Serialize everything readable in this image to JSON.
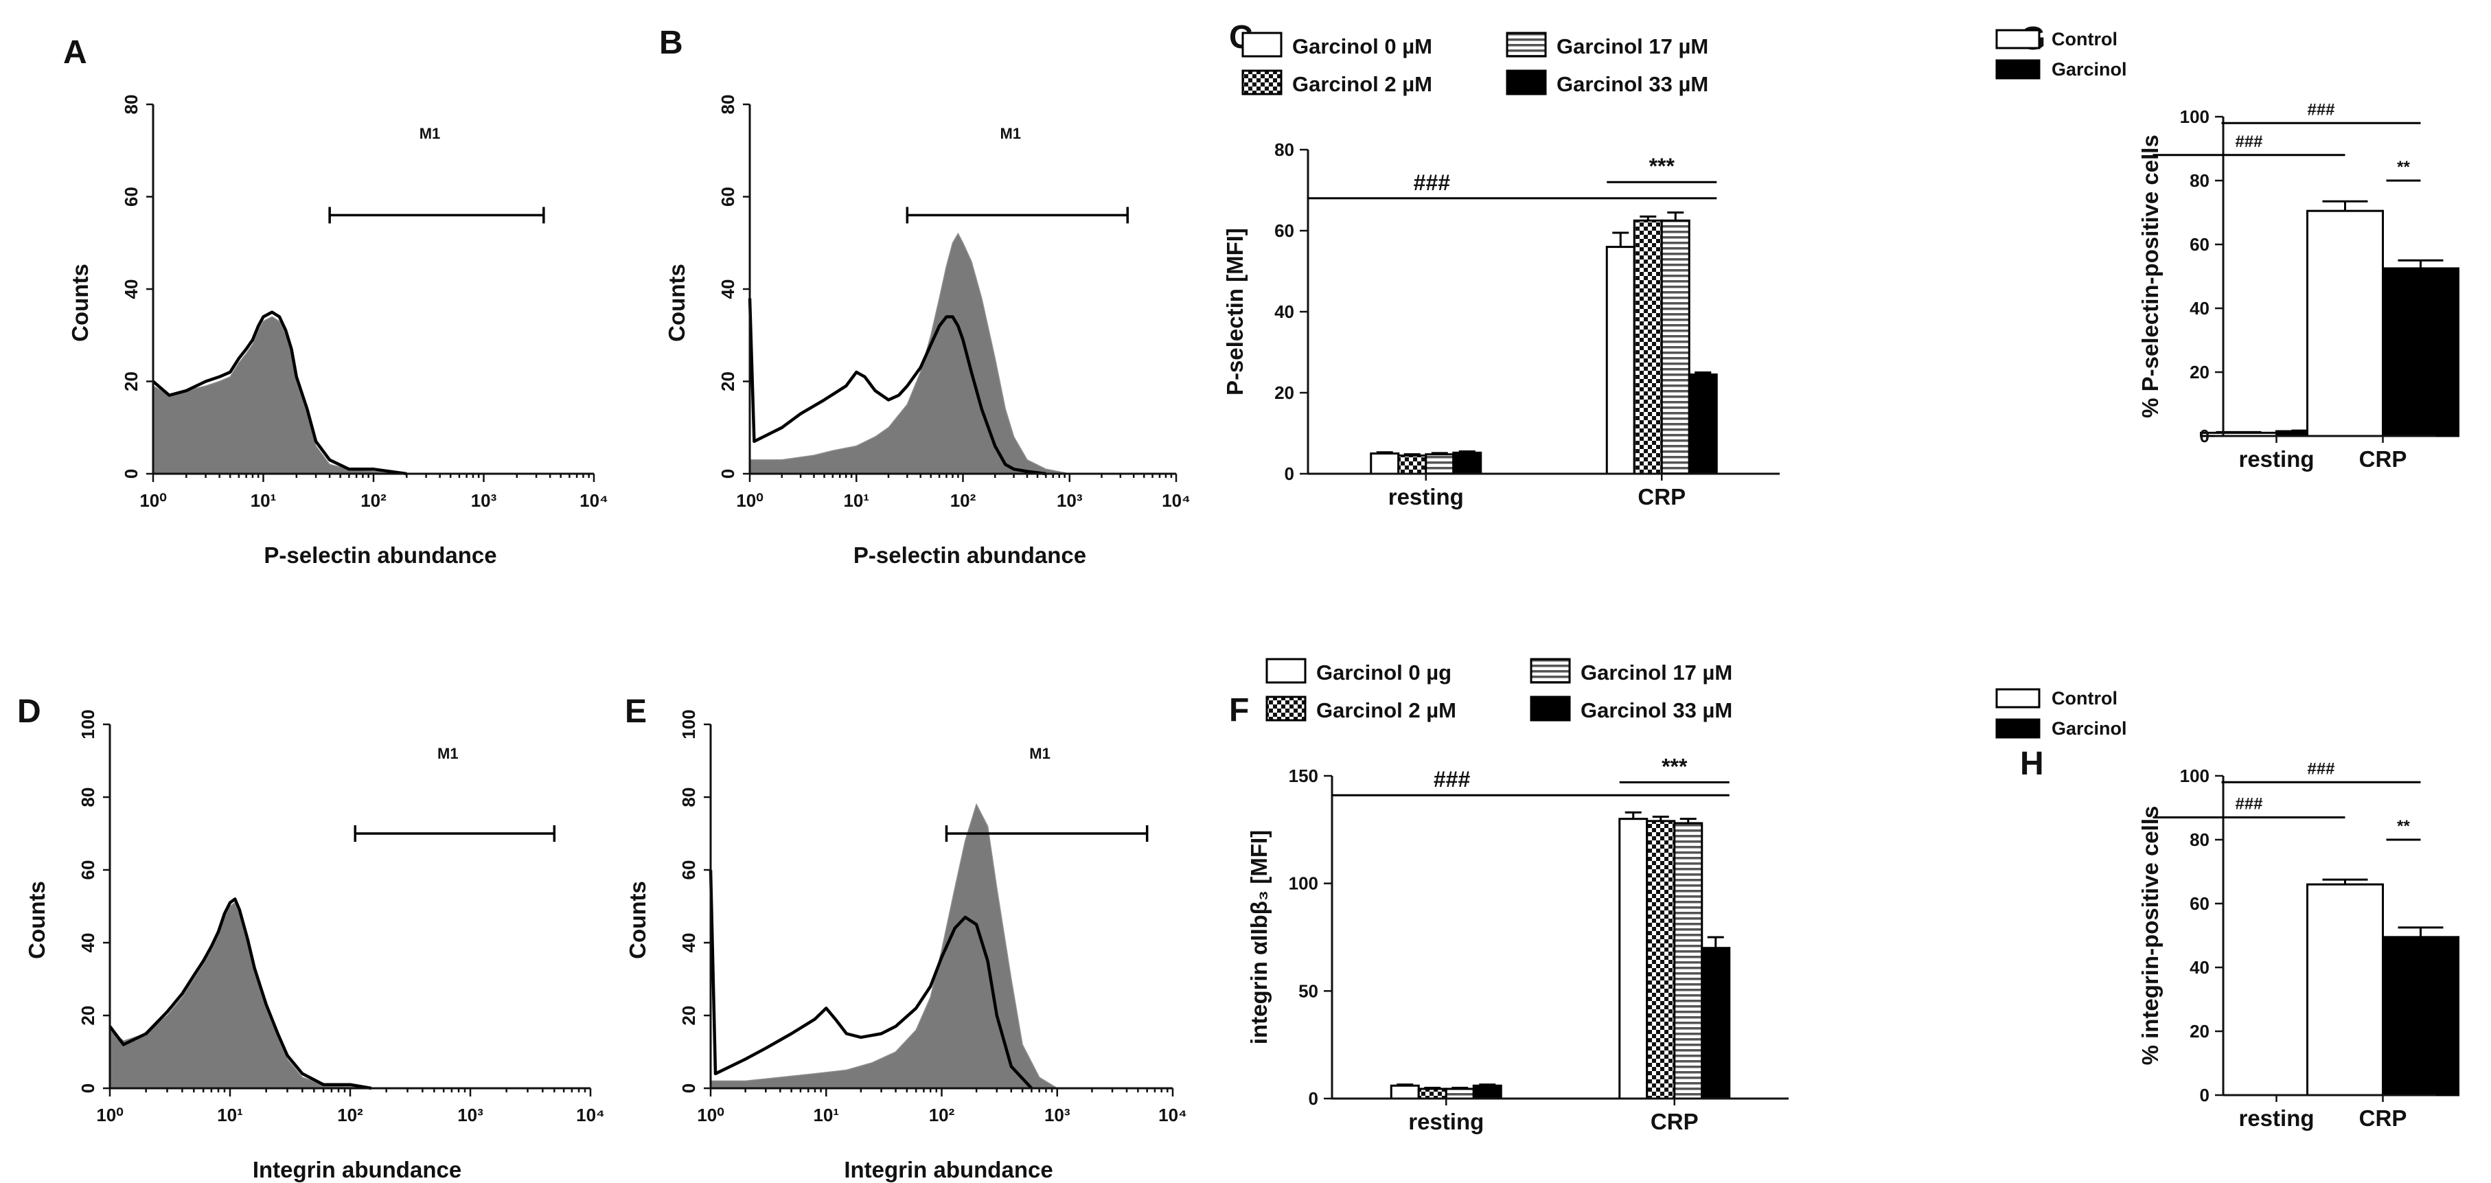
{
  "chart_data": [
    {
      "panel": "A",
      "type": "histogram",
      "ylabel": "Counts",
      "xlabel": "P-selectin abundance",
      "xscale": "log",
      "xlim": [
        1,
        10000
      ],
      "ylim": [
        0,
        80
      ],
      "y_ticks": [
        "0",
        "20",
        "40",
        "60",
        "80"
      ],
      "x_ticks": [
        "10⁰",
        "10¹",
        "10²",
        "10³",
        "10⁴"
      ],
      "gate": {
        "label": "M1",
        "from": 40,
        "to": 3500
      },
      "filled_series": {
        "name": "filled",
        "x": [
          1,
          1.4,
          2,
          3,
          4,
          5,
          6,
          7,
          8,
          9,
          10,
          12,
          14,
          16,
          18,
          20,
          25,
          30,
          40,
          60,
          100,
          200
        ],
        "y": [
          19,
          17,
          18,
          19,
          20,
          21,
          24,
          26,
          28,
          31,
          33,
          34,
          33,
          30,
          26,
          20,
          13,
          6,
          2,
          1,
          0.5,
          0
        ]
      },
      "outline_series": {
        "name": "outline",
        "x": [
          1,
          1.4,
          2,
          3,
          4,
          5,
          6,
          7,
          8,
          9,
          10,
          12,
          14,
          16,
          18,
          20,
          25,
          30,
          40,
          60,
          100,
          200
        ],
        "y": [
          20,
          17,
          18,
          20,
          21,
          22,
          25,
          27,
          29,
          32,
          34,
          35,
          34,
          31,
          27,
          21,
          14,
          7,
          3,
          1,
          1,
          0
        ]
      }
    },
    {
      "panel": "B",
      "type": "histogram",
      "ylabel": "Counts",
      "xlabel": "P-selectin abundance",
      "xscale": "log",
      "xlim": [
        1,
        10000
      ],
      "ylim": [
        0,
        80
      ],
      "y_ticks": [
        "0",
        "20",
        "40",
        "60",
        "80"
      ],
      "x_ticks": [
        "10⁰",
        "10¹",
        "10²",
        "10³",
        "10⁴"
      ],
      "gate": {
        "label": "M1",
        "from": 30,
        "to": 3500
      },
      "filled_series": {
        "name": "filled",
        "x": [
          1,
          2,
          4,
          6,
          10,
          15,
          20,
          30,
          40,
          50,
          60,
          70,
          80,
          90,
          100,
          120,
          150,
          200,
          250,
          300,
          400,
          600,
          1000
        ],
        "y": [
          3,
          3,
          4,
          5,
          6,
          8,
          10,
          15,
          22,
          30,
          38,
          45,
          50,
          52,
          50,
          46,
          38,
          25,
          14,
          8,
          3,
          1,
          0
        ]
      },
      "outline_series": {
        "name": "outline",
        "x": [
          1,
          1.1,
          2,
          3,
          5,
          8,
          10,
          12,
          15,
          20,
          25,
          30,
          40,
          50,
          60,
          70,
          80,
          90,
          100,
          120,
          150,
          200,
          250,
          300,
          400,
          600
        ],
        "y": [
          38,
          7,
          10,
          13,
          16,
          19,
          22,
          21,
          18,
          16,
          17,
          19,
          23,
          28,
          32,
          34,
          34,
          32,
          29,
          22,
          14,
          6,
          2,
          1,
          0.5,
          0
        ]
      }
    },
    {
      "panel": "C",
      "type": "bar",
      "ylabel": "P-selectin [MFI]",
      "categories": [
        "resting",
        "CRP"
      ],
      "ylim": [
        0,
        80
      ],
      "y_ticks": [
        "0",
        "20",
        "40",
        "60",
        "80"
      ],
      "legend": [
        "Garcinol 0 µM",
        "Garcinol 2 µM",
        "Garcinol 17 µM",
        "Garcinol 33 µM"
      ],
      "series": [
        {
          "name": "Garcinol 0 µM",
          "pattern": "white",
          "values": [
            5,
            56
          ],
          "errors": [
            0.3,
            3.5
          ]
        },
        {
          "name": "Garcinol 2 µM",
          "pattern": "checker",
          "values": [
            4.5,
            62.5
          ],
          "errors": [
            0.3,
            1
          ]
        },
        {
          "name": "Garcinol 17 µM",
          "pattern": "hstripe",
          "values": [
            4.8,
            62.5
          ],
          "errors": [
            0.3,
            2
          ]
        },
        {
          "name": "Garcinol 33 µM",
          "pattern": "black",
          "values": [
            5.2,
            24.5
          ],
          "errors": [
            0.3,
            0.5
          ]
        }
      ],
      "significance": [
        {
          "label": "###",
          "level": 68
        },
        {
          "label": "***",
          "level": 72
        }
      ]
    },
    {
      "panel": "G",
      "type": "bar",
      "ylabel": "% P-selectin-positive cells",
      "categories": [
        "resting",
        "CRP"
      ],
      "ylim": [
        0,
        100
      ],
      "y_ticks": [
        "0",
        "20",
        "40",
        "60",
        "80",
        "100"
      ],
      "legend": [
        "Control",
        "Garcinol"
      ],
      "series": [
        {
          "name": "Control",
          "pattern": "white",
          "values": [
            1,
            70.5
          ],
          "errors": [
            0.2,
            3
          ]
        },
        {
          "name": "Garcinol",
          "pattern": "black",
          "values": [
            1.5,
            52.5
          ],
          "errors": [
            0.2,
            2.5
          ]
        }
      ],
      "significance": [
        {
          "label": "###",
          "level": 98
        },
        {
          "label": "###",
          "level": 88
        },
        {
          "label": "**",
          "level": 80
        }
      ]
    },
    {
      "panel": "D",
      "type": "histogram",
      "ylabel": "Counts",
      "xlabel": "Integrin abundance",
      "xscale": "log",
      "xlim": [
        1,
        10000
      ],
      "ylim": [
        0,
        100
      ],
      "y_ticks": [
        "0",
        "20",
        "40",
        "60",
        "80",
        "100"
      ],
      "x_ticks": [
        "10⁰",
        "10¹",
        "10²",
        "10³",
        "10⁴"
      ],
      "gate": {
        "label": "M1",
        "from": 110,
        "to": 5000
      },
      "filled_series": {
        "name": "filled",
        "x": [
          1,
          1.3,
          2,
          3,
          4,
          5,
          6,
          7,
          8,
          9,
          10,
          11,
          12,
          14,
          16,
          20,
          25,
          30,
          40,
          60,
          100,
          150
        ],
        "y": [
          16,
          13,
          15,
          20,
          25,
          30,
          34,
          38,
          42,
          47,
          50,
          51,
          48,
          40,
          32,
          22,
          14,
          8,
          3,
          1,
          0.5,
          0
        ]
      },
      "outline_series": {
        "name": "outline",
        "x": [
          1,
          1.3,
          2,
          3,
          4,
          5,
          6,
          7,
          8,
          9,
          10,
          11,
          12,
          14,
          16,
          20,
          25,
          30,
          40,
          60,
          100,
          150
        ],
        "y": [
          17,
          12,
          15,
          21,
          26,
          31,
          35,
          39,
          43,
          48,
          51,
          52,
          49,
          41,
          33,
          23,
          15,
          9,
          4,
          1,
          1,
          0
        ]
      }
    },
    {
      "panel": "E",
      "type": "histogram",
      "ylabel": "Counts",
      "xlabel": "Integrin abundance",
      "xscale": "log",
      "xlim": [
        1,
        10000
      ],
      "ylim": [
        0,
        100
      ],
      "y_ticks": [
        "0",
        "20",
        "40",
        "60",
        "80",
        "100"
      ],
      "x_ticks": [
        "10⁰",
        "10¹",
        "10²",
        "10³",
        "10⁴"
      ],
      "gate": {
        "label": "M1",
        "from": 110,
        "to": 6000
      },
      "filled_series": {
        "name": "filled",
        "x": [
          1,
          2,
          4,
          8,
          15,
          25,
          40,
          60,
          80,
          100,
          130,
          160,
          200,
          250,
          300,
          400,
          500,
          700,
          1000
        ],
        "y": [
          2,
          2,
          3,
          4,
          5,
          7,
          10,
          16,
          25,
          38,
          55,
          68,
          78,
          72,
          55,
          30,
          12,
          3,
          0
        ]
      },
      "outline_series": {
        "name": "outline",
        "x": [
          1,
          1.1,
          2,
          3,
          5,
          8,
          10,
          12,
          15,
          20,
          30,
          40,
          60,
          80,
          100,
          130,
          160,
          200,
          250,
          300,
          400,
          600
        ],
        "y": [
          60,
          4,
          8,
          11,
          15,
          19,
          22,
          19,
          15,
          14,
          15,
          17,
          22,
          28,
          36,
          44,
          47,
          45,
          35,
          20,
          6,
          0
        ]
      }
    },
    {
      "panel": "F",
      "type": "bar",
      "ylabel": "integrin αIIbβ₃ [MFI]",
      "categories": [
        "resting",
        "CRP"
      ],
      "ylim": [
        0,
        150
      ],
      "y_ticks": [
        "0",
        "50",
        "100",
        "150"
      ],
      "legend": [
        "Garcinol 0 µg",
        "Garcinol 2 µM",
        "Garcinol 17 µM",
        "Garcinol 33 µM"
      ],
      "series": [
        {
          "name": "Garcinol 0 µg",
          "pattern": "white",
          "values": [
            6,
            130
          ],
          "errors": [
            0.5,
            3
          ]
        },
        {
          "name": "Garcinol 2 µM",
          "pattern": "checker",
          "values": [
            4.5,
            129
          ],
          "errors": [
            0.5,
            2
          ]
        },
        {
          "name": "Garcinol 17 µM",
          "pattern": "hstripe",
          "values": [
            4.5,
            128
          ],
          "errors": [
            0.5,
            2
          ]
        },
        {
          "name": "Garcinol 33 µM",
          "pattern": "black",
          "values": [
            6,
            70
          ],
          "errors": [
            0.5,
            5
          ]
        }
      ],
      "significance": [
        {
          "label": "###",
          "level": 141
        },
        {
          "label": "***",
          "level": 147
        }
      ]
    },
    {
      "panel": "H",
      "type": "bar",
      "ylabel": "% integrin-positive cells",
      "categories": [
        "resting",
        "CRP"
      ],
      "ylim": [
        0,
        100
      ],
      "y_ticks": [
        "0",
        "20",
        "40",
        "60",
        "80",
        "100"
      ],
      "legend": [
        "Control",
        "Garcinol"
      ],
      "series": [
        {
          "name": "Control",
          "pattern": "white",
          "values": [
            0,
            66
          ],
          "errors": [
            0,
            1.5
          ]
        },
        {
          "name": "Garcinol",
          "pattern": "black",
          "values": [
            0,
            49.5
          ],
          "errors": [
            0,
            3
          ]
        }
      ],
      "significance": [
        {
          "label": "###",
          "level": 98
        },
        {
          "label": "###",
          "level": 87
        },
        {
          "label": "**",
          "level": 80
        }
      ]
    }
  ]
}
